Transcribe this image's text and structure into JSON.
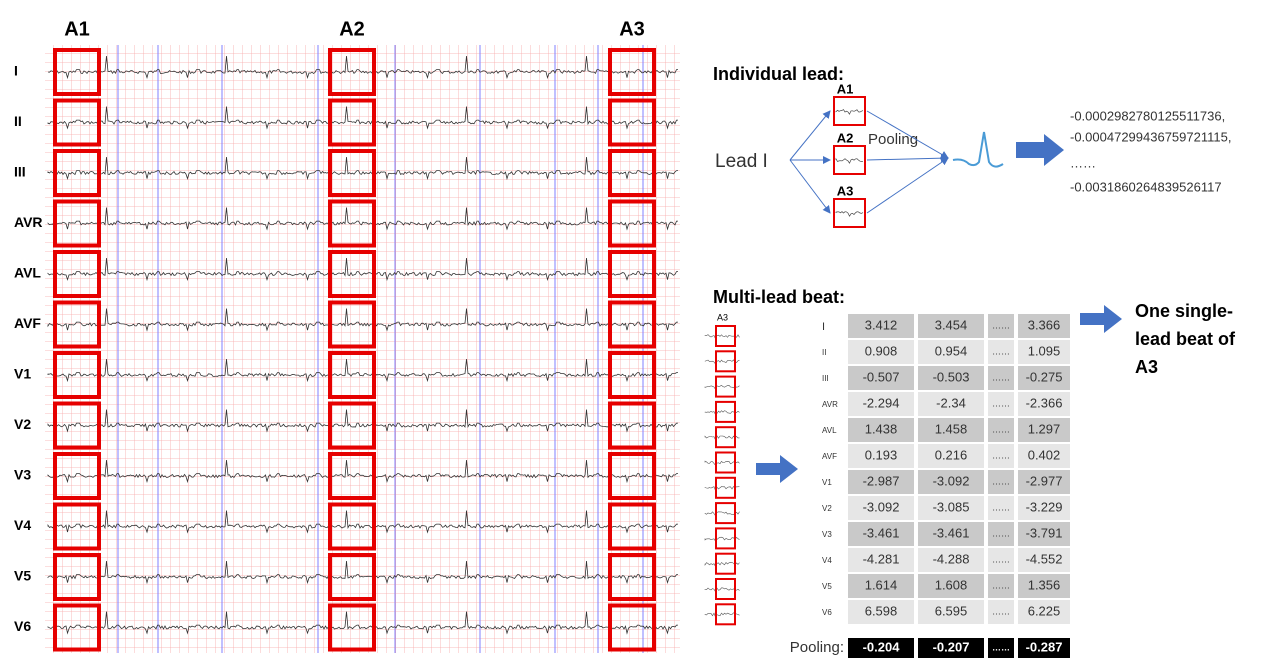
{
  "ecg": {
    "beat_labels": [
      "A1",
      "A2",
      "A3"
    ],
    "leads": [
      "I",
      "II",
      "III",
      "AVR",
      "AVL",
      "AVF",
      "V1",
      "V2",
      "V3",
      "V4",
      "V5",
      "V6"
    ]
  },
  "individual_lead": {
    "title": "Individual lead:",
    "input": "Lead I",
    "beats": [
      "A1",
      "A2",
      "A3"
    ],
    "operation": "Pooling",
    "output_values": [
      "-0.0002982780125511736,",
      "-0.00047299436759721115,",
      "……",
      "-0.0031860264839526117"
    ]
  },
  "multi_lead": {
    "title": "Multi-lead beat:",
    "stack_label": "A3",
    "table": {
      "rows": [
        {
          "lead": "I",
          "values": [
            3.412,
            3.454,
            "……",
            3.366
          ]
        },
        {
          "lead": "II",
          "values": [
            0.908,
            0.954,
            "……",
            1.095
          ]
        },
        {
          "lead": "III",
          "values": [
            -0.507,
            -0.503,
            "……",
            -0.275
          ]
        },
        {
          "lead": "AVR",
          "values": [
            -2.294,
            -2.34,
            "……",
            -2.366
          ]
        },
        {
          "lead": "AVL",
          "values": [
            1.438,
            1.458,
            "……",
            1.297
          ]
        },
        {
          "lead": "AVF",
          "values": [
            0.193,
            0.216,
            "……",
            0.402
          ]
        },
        {
          "lead": "V1",
          "values": [
            -2.987,
            -3.092,
            "……",
            -2.977
          ]
        },
        {
          "lead": "V2",
          "values": [
            -3.092,
            -3.085,
            "……",
            -3.229
          ]
        },
        {
          "lead": "V3",
          "values": [
            -3.461,
            -3.461,
            "……",
            -3.791
          ]
        },
        {
          "lead": "V4",
          "values": [
            -4.281,
            -4.288,
            "……",
            -4.552
          ]
        },
        {
          "lead": "V5",
          "values": [
            1.614,
            1.608,
            "……",
            1.356
          ]
        },
        {
          "lead": "V6",
          "values": [
            6.598,
            6.595,
            "……",
            6.225
          ]
        }
      ],
      "pooling_row": {
        "label": "Pooling:",
        "values": [
          -0.204,
          -0.207,
          "……",
          -0.287
        ]
      }
    },
    "output": "One single-lead beat of A3"
  }
}
